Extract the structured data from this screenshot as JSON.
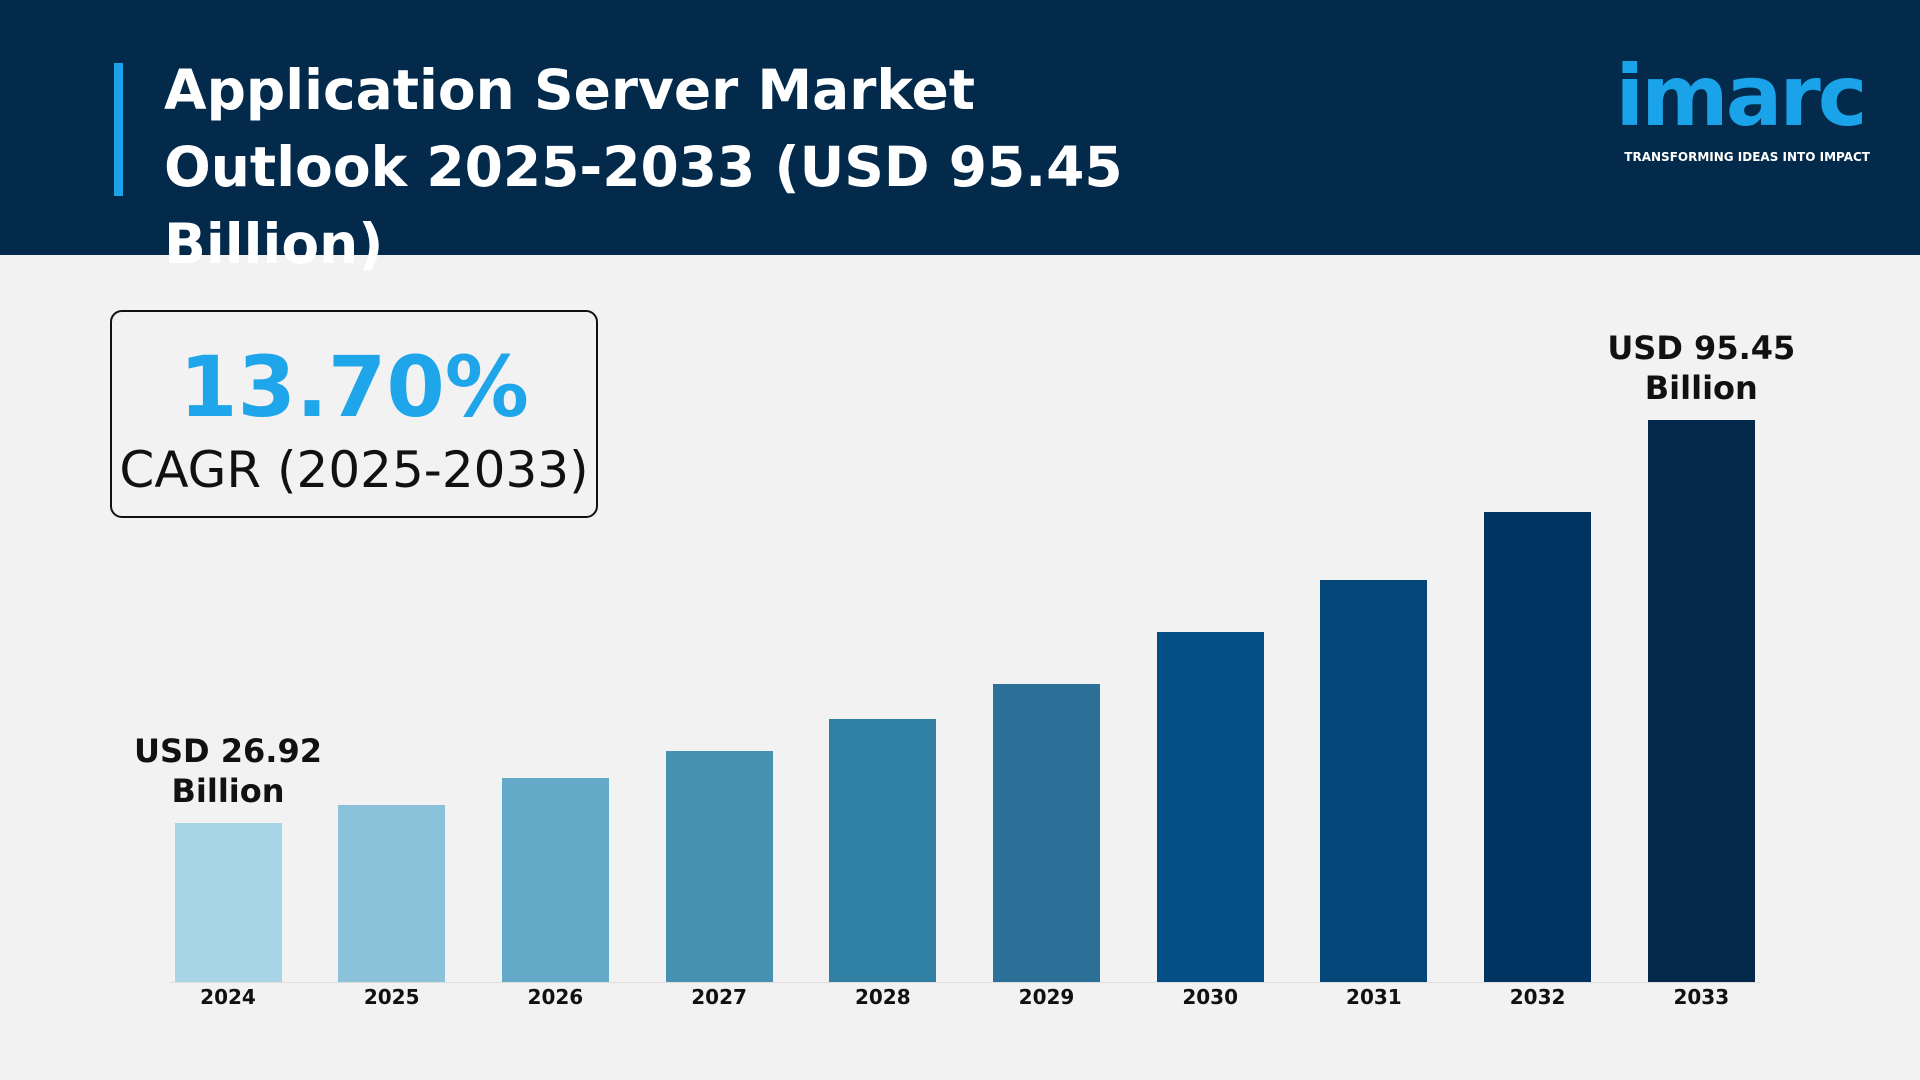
{
  "header": {
    "title": "Application Server Market Outlook 2025-2033 (USD 95.45 Billion)"
  },
  "brand": {
    "name": "imarc",
    "tagline": "TRANSFORMING IDEAS INTO IMPACT"
  },
  "highlight": {
    "value": "13.70%",
    "label": "CAGR (2025-2033)"
  },
  "chart_data": {
    "type": "bar",
    "categories": [
      "2024",
      "2025",
      "2026",
      "2027",
      "2028",
      "2029",
      "2030",
      "2031",
      "2032",
      "2033"
    ],
    "values": [
      26.92,
      30.1,
      34.6,
      39.2,
      44.6,
      50.6,
      59.5,
      68.3,
      79.8,
      95.45
    ],
    "value_labels": [
      "USD 26.92 Billion",
      null,
      null,
      null,
      null,
      null,
      null,
      null,
      null,
      "USD 95.45 Billion"
    ],
    "colors": [
      "#a8d5e6",
      "#8bc2d9",
      "#63a9c8",
      "#4791b1",
      "#2f80a2",
      "#2c7097",
      "#045086",
      "#044678",
      "#023461",
      "#03284a"
    ]
  }
}
